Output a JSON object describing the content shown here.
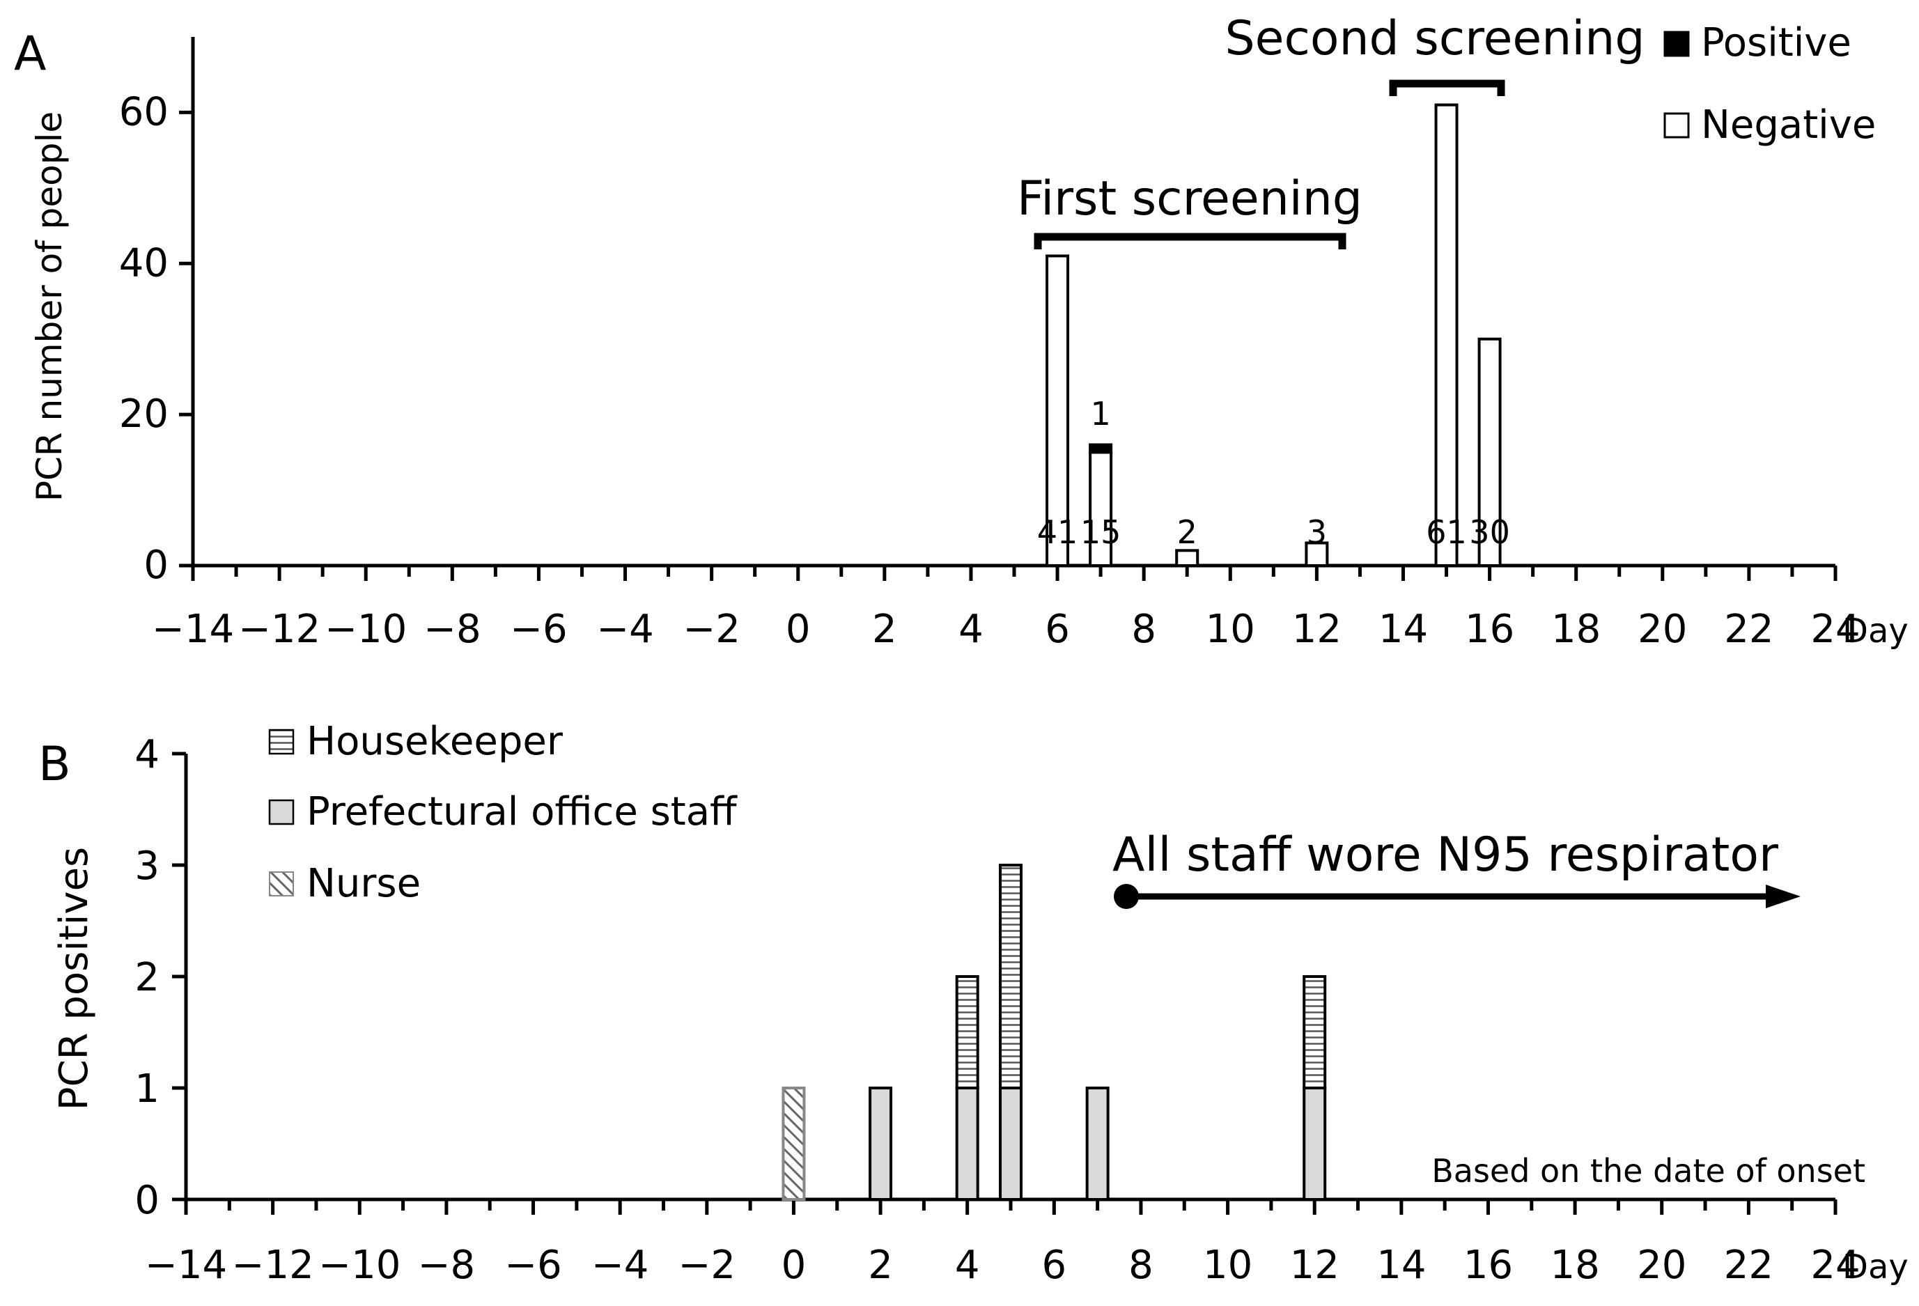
{
  "chart_data": [
    {
      "type": "bar",
      "panel_label": "A",
      "ylabel": "PCR number of people",
      "xlabel": "Day",
      "xlim": [
        -14,
        24
      ],
      "ylim": [
        0,
        70
      ],
      "yticks": [
        0,
        20,
        40,
        60
      ],
      "xticks": [
        "−14",
        "−12",
        "−10",
        "−8",
        "−6",
        "−4",
        "−2",
        "0",
        "2",
        "4",
        "6",
        "8",
        "10",
        "12",
        "14",
        "16",
        "18",
        "20",
        "22",
        "24"
      ],
      "x": [
        6,
        7,
        9,
        12,
        15,
        16
      ],
      "series": [
        {
          "name": "Positive",
          "color": "#000000",
          "values": [
            0,
            1,
            0,
            0,
            0,
            0
          ]
        },
        {
          "name": "Negative",
          "color": "#ffffff",
          "values": [
            41,
            15,
            2,
            3,
            61,
            30
          ]
        }
      ],
      "data_labels": [
        {
          "x": 6,
          "text": "41"
        },
        {
          "x": 7,
          "text": "15"
        },
        {
          "x": 9,
          "text": "2"
        },
        {
          "x": 12,
          "text": "3"
        },
        {
          "x": 15,
          "text": "61"
        },
        {
          "x": 16,
          "text": "30"
        }
      ],
      "positive_label": {
        "x": 7,
        "text": "1"
      },
      "annotations": [
        {
          "text": "First screening",
          "x_from": 5.5,
          "x_to": 12.7
        },
        {
          "text": "Second screening",
          "x_from": 14,
          "x_to": 16.5
        }
      ],
      "legend": {
        "position": "top-right",
        "items": [
          "Positive",
          "Negative"
        ]
      }
    },
    {
      "type": "bar",
      "stacked": true,
      "panel_label": "B",
      "ylabel": "PCR positives",
      "xlabel": "Day",
      "xlim": [
        -14,
        24
      ],
      "ylim": [
        0,
        4
      ],
      "yticks": [
        0,
        1,
        2,
        3,
        4
      ],
      "xticks": [
        "−14",
        "−12",
        "−10",
        "−8",
        "−6",
        "−4",
        "−2",
        "0",
        "2",
        "4",
        "6",
        "8",
        "10",
        "12",
        "14",
        "16",
        "18",
        "20",
        "22",
        "24"
      ],
      "x": [
        0,
        2,
        4,
        5,
        7,
        12
      ],
      "series": [
        {
          "name": "Nurse",
          "pattern": "diagonal-hatch",
          "values": [
            1,
            0,
            0,
            0,
            0,
            0
          ]
        },
        {
          "name": "Prefectural office staff",
          "pattern": "solid-light-gray",
          "values": [
            0,
            1,
            1,
            1,
            1,
            1
          ]
        },
        {
          "name": "Housekeeper",
          "pattern": "horizontal-lines",
          "values": [
            0,
            0,
            1,
            2,
            0,
            1
          ]
        }
      ],
      "legend": {
        "position": "top-left",
        "items": [
          "Housekeeper",
          "Prefectural office staff",
          "Nurse"
        ]
      },
      "annotation": {
        "text": "All staff wore N95 respirator",
        "x_from": 7.8,
        "x_to": 24
      },
      "note": "Based on the date of onset"
    }
  ]
}
